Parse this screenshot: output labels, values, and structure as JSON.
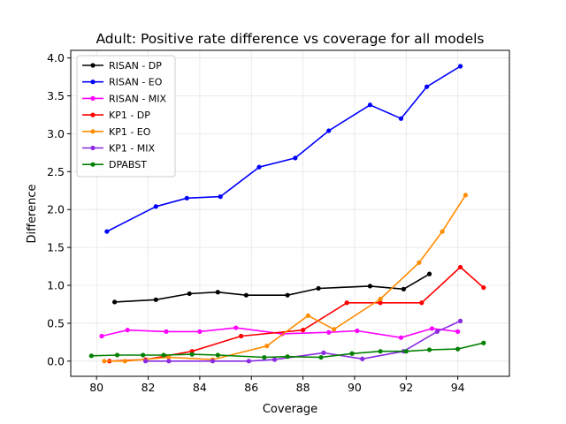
{
  "chart_data": {
    "type": "line",
    "title": "Adult: Positive rate difference vs coverage for all models",
    "xlabel": "Coverage",
    "ylabel": "Difference",
    "xlim": [
      79,
      96
    ],
    "ylim": [
      -0.2,
      4.1
    ],
    "xticks": [
      80,
      82,
      84,
      86,
      88,
      90,
      92,
      94
    ],
    "yticks": [
      0.0,
      0.5,
      1.0,
      1.5,
      2.0,
      2.5,
      3.0,
      3.5,
      4.0
    ],
    "xtick_labels": [
      "80",
      "82",
      "84",
      "86",
      "88",
      "90",
      "92",
      "94"
    ],
    "ytick_labels": [
      "0.0",
      "0.5",
      "1.0",
      "1.5",
      "2.0",
      "2.5",
      "3.0",
      "3.5",
      "4.0"
    ],
    "grid": true,
    "legend_position": "top-left",
    "series": [
      {
        "name": "RISAN - DP",
        "color": "#000000",
        "x": [
          80.7,
          82.3,
          83.6,
          84.7,
          85.8,
          87.4,
          88.6,
          90.6,
          91.9,
          92.9
        ],
        "y": [
          0.78,
          0.81,
          0.89,
          0.91,
          0.87,
          0.87,
          0.96,
          0.99,
          0.95,
          1.15
        ]
      },
      {
        "name": "RISAN - EO",
        "color": "#0000ff",
        "x": [
          80.4,
          82.3,
          83.5,
          84.8,
          86.3,
          87.7,
          89.0,
          90.6,
          91.8,
          92.8,
          94.1
        ],
        "y": [
          1.71,
          2.04,
          2.15,
          2.17,
          2.56,
          2.68,
          3.04,
          3.38,
          3.2,
          3.62,
          3.89
        ]
      },
      {
        "name": "RISAN - MIX",
        "color": "#ff00ff",
        "x": [
          80.2,
          81.2,
          82.7,
          84.0,
          85.4,
          87.2,
          89.0,
          90.1,
          91.8,
          93.0,
          94.0
        ],
        "y": [
          0.33,
          0.41,
          0.39,
          0.39,
          0.44,
          0.36,
          0.38,
          0.4,
          0.31,
          0.43,
          0.39
        ]
      },
      {
        "name": "KP1 - DP",
        "color": "#ff0000",
        "x": [
          80.5,
          81.9,
          83.7,
          85.6,
          88.0,
          89.7,
          91.0,
          92.6,
          94.1,
          95.0
        ],
        "y": [
          0.0,
          0.02,
          0.13,
          0.33,
          0.41,
          0.77,
          0.77,
          0.77,
          1.24,
          0.97
        ]
      },
      {
        "name": "KP1 - EO",
        "color": "#ff8c00",
        "x": [
          80.3,
          81.1,
          82.8,
          84.5,
          86.6,
          88.2,
          89.2,
          91.0,
          92.5,
          93.4,
          94.3
        ],
        "y": [
          0.0,
          0.0,
          0.05,
          0.02,
          0.2,
          0.6,
          0.42,
          0.82,
          1.3,
          1.71,
          2.19
        ]
      },
      {
        "name": "KP1 - MIX",
        "color": "#8a2be2",
        "x": [
          81.9,
          82.8,
          84.5,
          85.9,
          86.9,
          88.8,
          90.3,
          91.9,
          93.2,
          94.1
        ],
        "y": [
          0.0,
          0.0,
          0.0,
          0.0,
          0.02,
          0.11,
          0.03,
          0.13,
          0.39,
          0.53
        ]
      },
      {
        "name": "DPABST",
        "color": "#008000",
        "x": [
          79.8,
          80.8,
          81.8,
          82.6,
          83.7,
          84.7,
          86.5,
          87.4,
          88.7,
          89.9,
          91.0,
          92.0,
          92.9,
          94.0,
          95.0
        ],
        "y": [
          0.07,
          0.08,
          0.08,
          0.08,
          0.09,
          0.08,
          0.05,
          0.06,
          0.05,
          0.1,
          0.13,
          0.13,
          0.15,
          0.16,
          0.24
        ]
      }
    ]
  }
}
